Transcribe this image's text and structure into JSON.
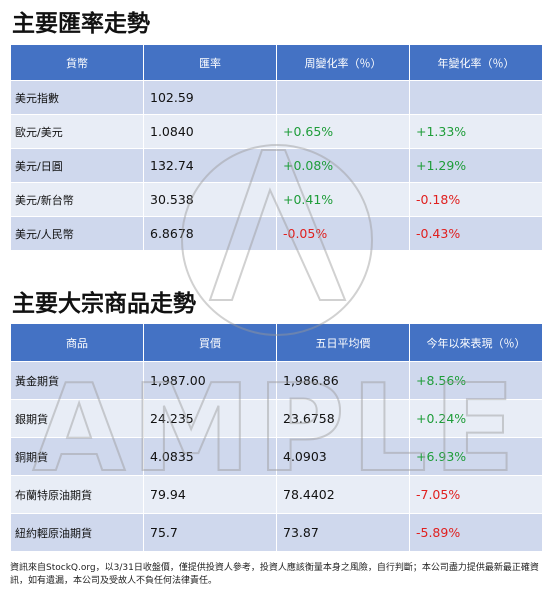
{
  "sections": [
    {
      "title": "主要匯率走勢",
      "headers": [
        "貨幣",
        "匯率",
        "周變化率（％）",
        "年變化率（％）"
      ],
      "rows": [
        [
          "美元指數",
          "102.59",
          "",
          ""
        ],
        [
          "歐元/美元",
          "1.0840",
          "+0.65%",
          "+1.33%"
        ],
        [
          "美元/日圓",
          "132.74",
          "+0.08%",
          "+1.29%"
        ],
        [
          "美元/新台幣",
          "30.538",
          "+0.41%",
          "-0.18%"
        ],
        [
          "美元/人民幣",
          "6.8678",
          "-0.05%",
          "-0.43%"
        ]
      ]
    },
    {
      "title": "主要大宗商品走勢",
      "headers": [
        "商品",
        "買價",
        "五日平均價",
        "今年以來表現（％）"
      ],
      "rows": [
        [
          "黃金期貨",
          "1,987.00",
          "1,986.86",
          "+8.56%"
        ],
        [
          "銀期貨",
          "24.235",
          "23.6758",
          "+0.24%"
        ],
        [
          "銅期貨",
          "4.0835",
          "4.0903",
          "+6.93%"
        ],
        [
          "布蘭特原油期貨",
          "79.94",
          "78.4402",
          "-7.05%"
        ],
        [
          "紐約輕原油期貨",
          "75.7",
          "73.87",
          "-5.89%"
        ]
      ]
    }
  ],
  "footer": "資訊來自StockQ.org，以3/31日收盤價，僅提供投資人參考，投資人應該衡量本身之風險，自行判斷；本公司盡力提供最新最正確資訊，如有遺漏，本公司及受故人不負任何法律責任。",
  "watermark": "AMPLE"
}
